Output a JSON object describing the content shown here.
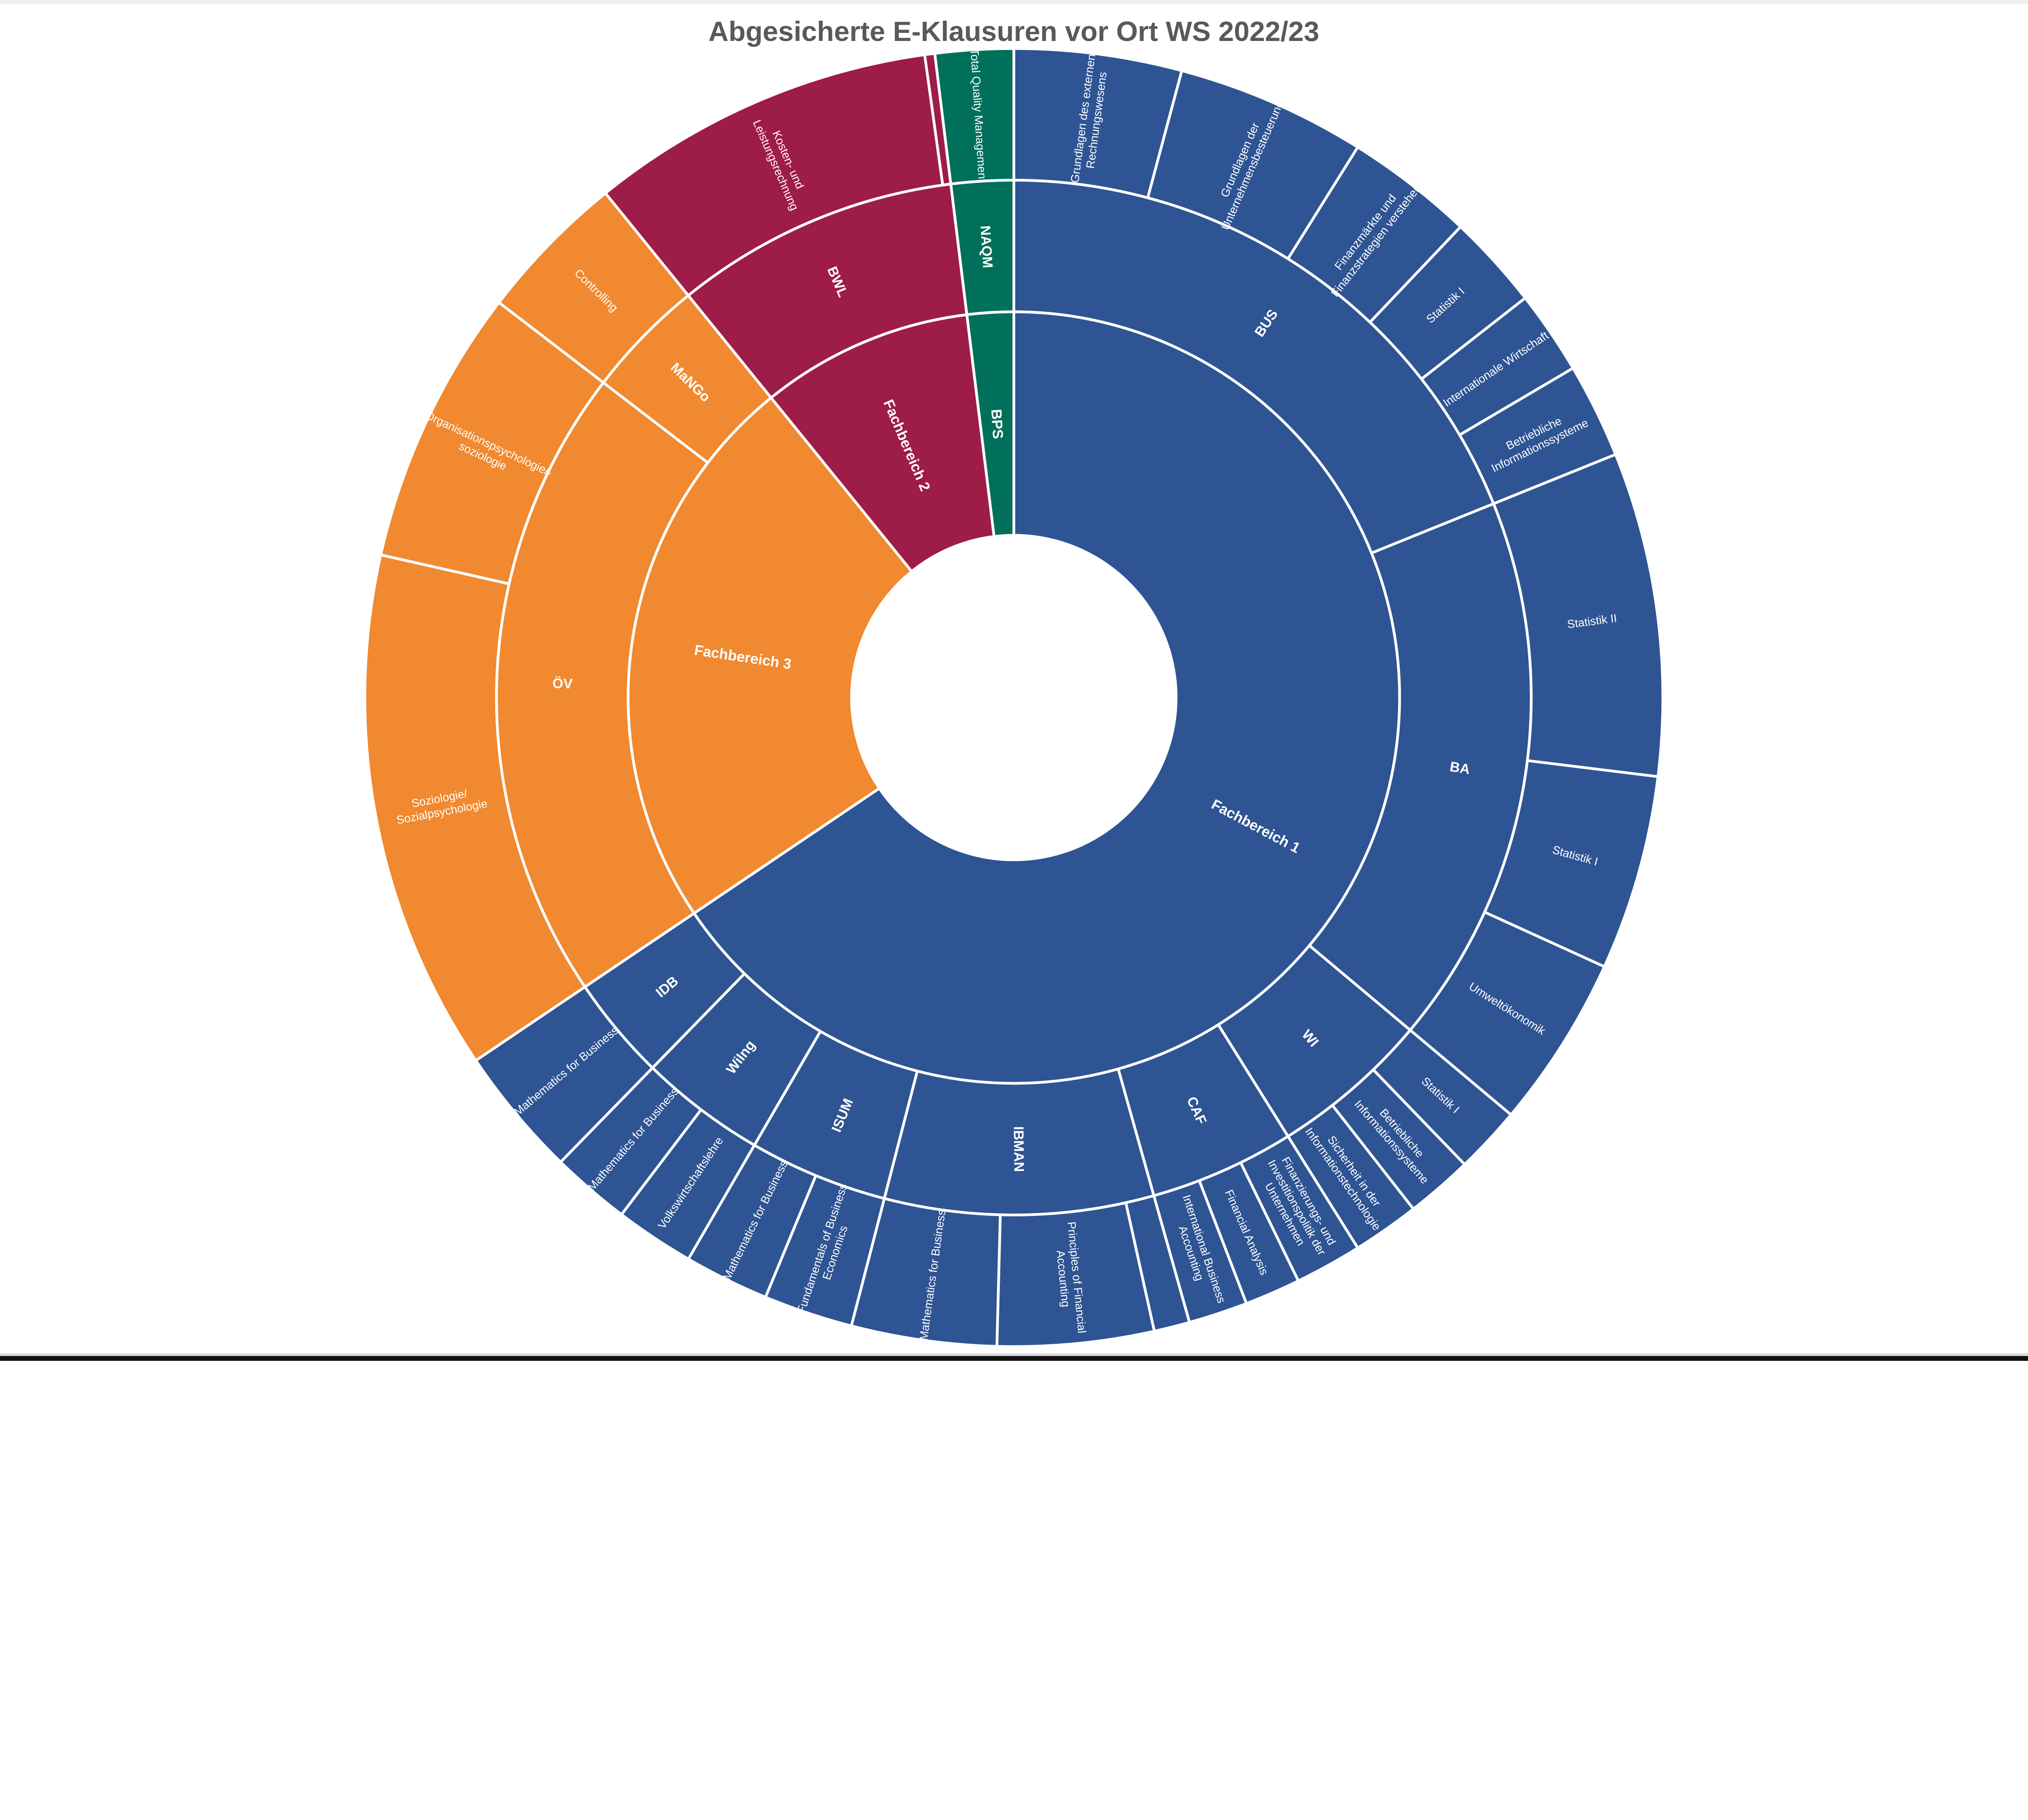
{
  "page": {
    "background": "#ffffff",
    "top_bar_color": "#efefef",
    "bottom_line_color": "#d9d9d9",
    "bottom_bar_color": "#111111"
  },
  "chart_data": {
    "type": "sunburst",
    "title": "Abgesicherte E-Klausuren vor Ort WS 2022/23",
    "title_color": "#595959",
    "levels": [
      "Fachbereich",
      "Studiengang",
      "Modul"
    ],
    "value_unit": "approximate angular share in degrees",
    "start_angle_deg": 0,
    "direction": "clockwise",
    "label_color": "#ffffff",
    "palette": {
      "fachbereich_1": "#2E5493",
      "fachbereich_2": "#9E1C48",
      "fachbereich_3": "#F0892F",
      "bps": "#00705A"
    },
    "tree": [
      {
        "label": "Fachbereich 1",
        "color": "#2E5493",
        "children": [
          {
            "label": "BUS",
            "children": [
              {
                "label": "Grundlagen des externen\nRechnungswesens",
                "value": 15
              },
              {
                "label": "Grundlagen der\nUnternehmensbesteuerung",
                "value": 17
              },
              {
                "label": "Finanzmärkte und\nFinanzstrategien verstehen",
                "value": 11.5
              },
              {
                "label": "Statistik I",
                "value": 8.5
              },
              {
                "label": "Internationale Wirtschaft",
                "value": 7.5
              },
              {
                "label": "Betriebliche\nInformationssysteme",
                "value": 8.5
              }
            ]
          },
          {
            "label": "BA",
            "children": [
              {
                "label": "Statistik II",
                "value": 29
              },
              {
                "label": "Statistik I",
                "value": 17.5
              },
              {
                "label": "Umweltökonomik",
                "value": 15.5
              }
            ]
          },
          {
            "label": "WI",
            "children": [
              {
                "label": "Statistik I",
                "value": 6
              },
              {
                "label": "Betriebliche\nInformationssysteme",
                "value": 6
              },
              {
                "label": "Sicherheit in der\nInformationstechnologie",
                "value": 6
              }
            ]
          },
          {
            "label": "CAF",
            "children": [
              {
                "label": "Finanzierungs- und\nInvestitionspolitik der\nUnternehmen",
                "value": 6
              },
              {
                "label": "Financial Analysis",
                "value": 5
              },
              {
                "label": "International Business\nAccounting",
                "value": 5.3
              }
            ]
          },
          {
            "label": "IBMAN",
            "children": [
              {
                "label": "",
                "value": 3.2
              },
              {
                "label": "Principles of Financial\nAccounting",
                "value": 14
              },
              {
                "label": "Mathematics for Business",
                "value": 13
              }
            ]
          },
          {
            "label": "ISUM",
            "children": [
              {
                "label": "Fundamentals of Business\nEconomics",
                "value": 8
              },
              {
                "label": "Mathematics for Business",
                "value": 7.6
              }
            ]
          },
          {
            "label": "WiIng",
            "children": [
              {
                "label": "Volkswirtschaftslehre",
                "value": 7.1
              },
              {
                "label": "Mathematics for Business",
                "value": 7.1
              }
            ]
          },
          {
            "label": "IDB",
            "children": [
              {
                "label": "Mathematics for Business",
                "value": 11.7
              }
            ]
          }
        ]
      },
      {
        "label": "Fachbereich 3",
        "color": "#F0892F",
        "children": [
          {
            "label": "ÖV",
            "children": [
              {
                "label": "Soziologie/\nSozialpsychologie",
                "value": 46.7
              },
              {
                "label": "Organisationspsychologie/-\nsoziologie",
                "value": 24.8
              }
            ]
          },
          {
            "label": "MaNGo",
            "children": [
              {
                "label": "Controlling",
                "value": 13.5
              }
            ]
          }
        ]
      },
      {
        "label": "Fachbereich 2",
        "color": "#9E1C48",
        "children": [
          {
            "label": "BWL",
            "children": [
              {
                "label": "Kosten- und\nLeistungsrechnung",
                "value": 31.1
              },
              {
                "label": "",
                "value": 0.9
              }
            ]
          }
        ]
      },
      {
        "label": "BPS",
        "color": "#00705A",
        "children": [
          {
            "label": "NAQM",
            "children": [
              {
                "label": "Total Quality Management",
                "value": 7
              }
            ]
          }
        ]
      }
    ]
  }
}
